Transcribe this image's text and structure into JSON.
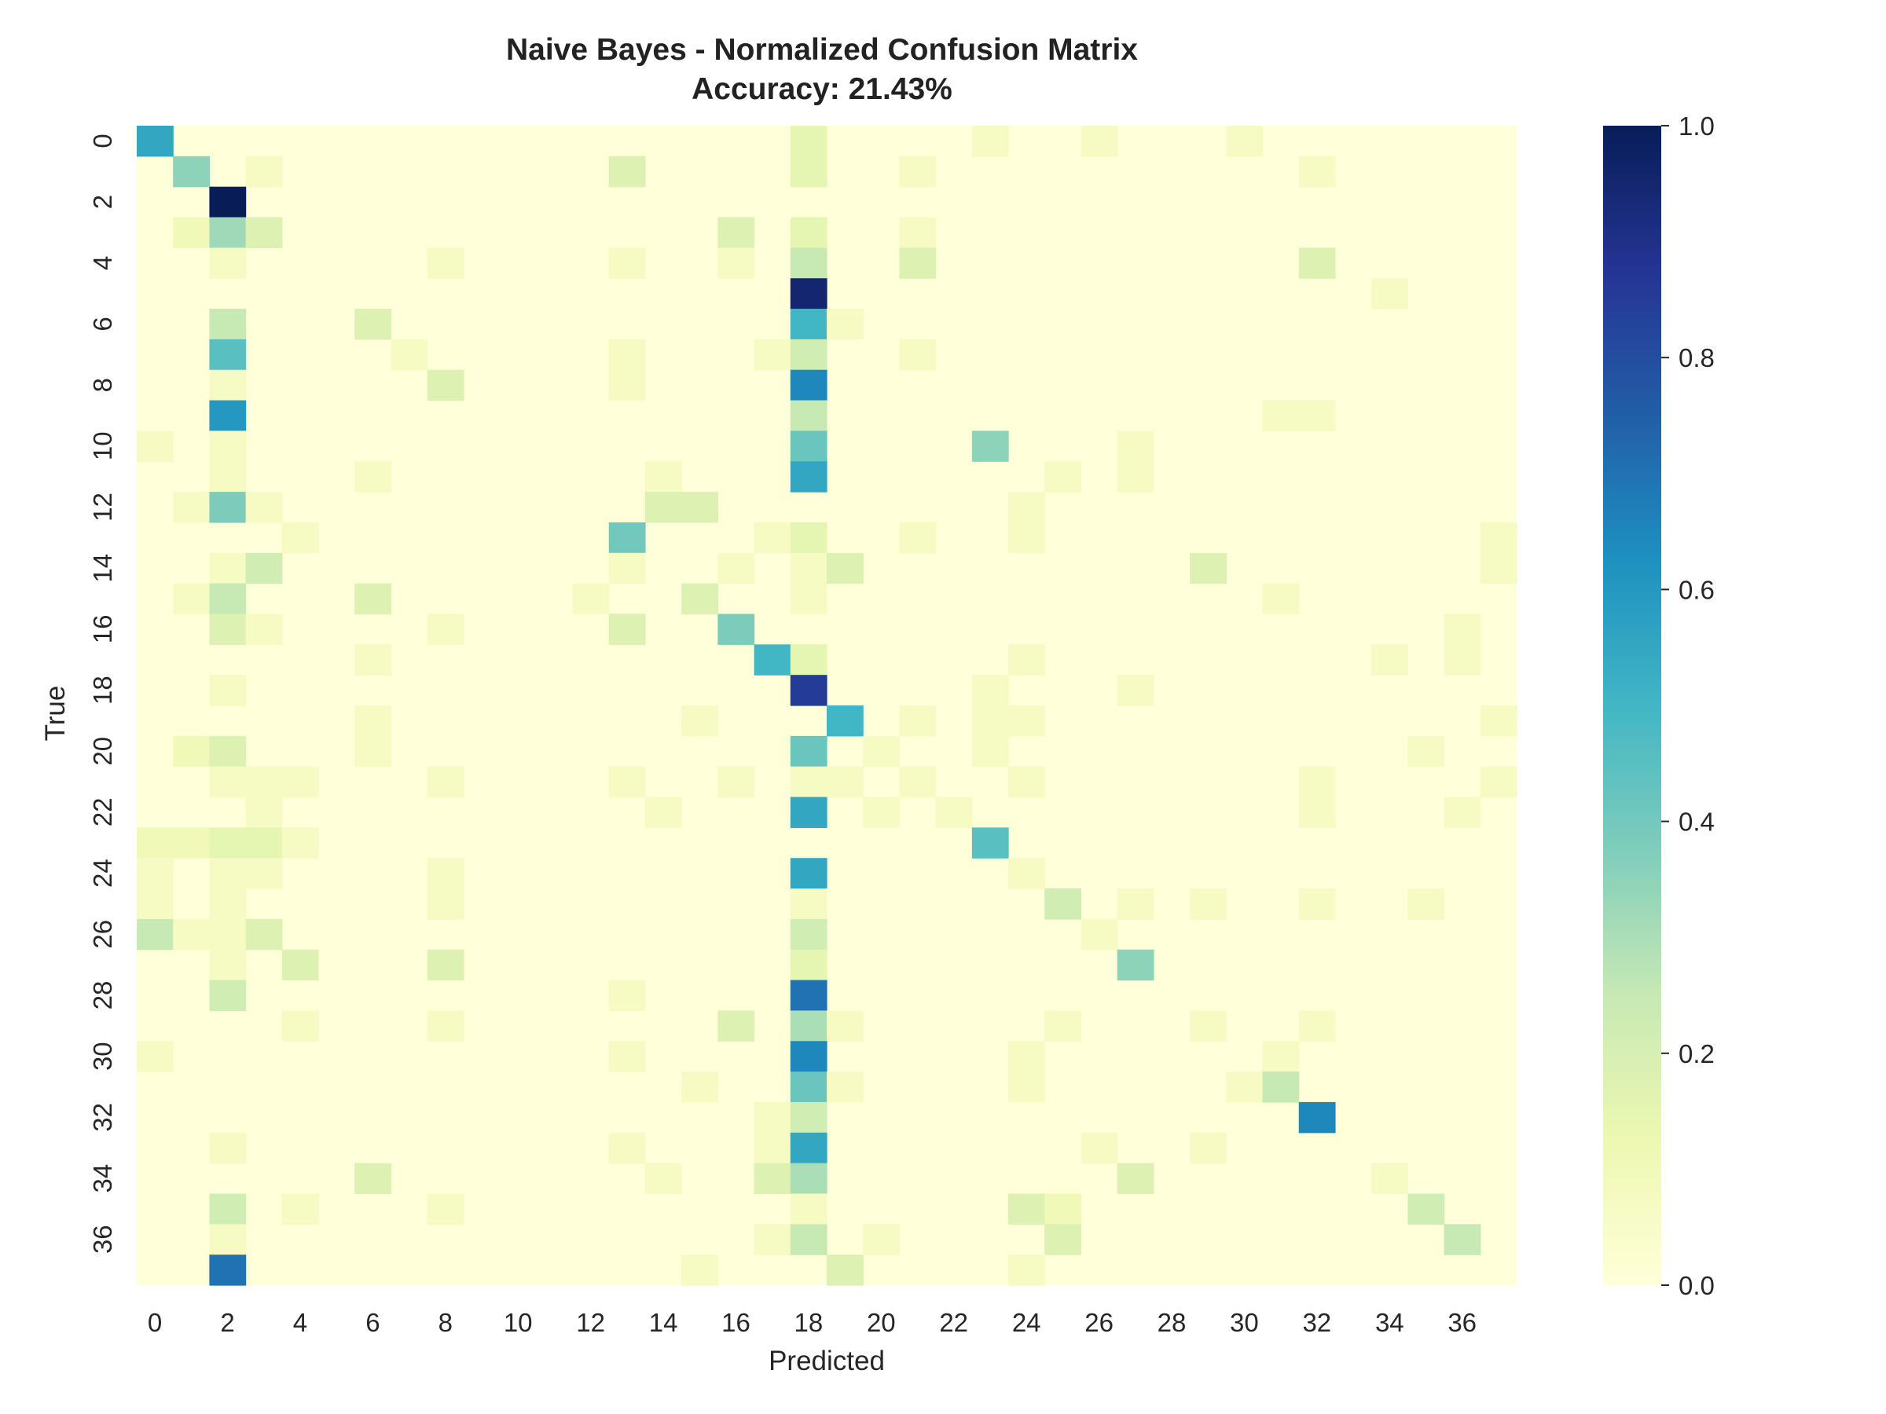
{
  "chart_data": {
    "type": "heatmap",
    "title": "Naive Bayes - Normalized Confusion Matrix",
    "subtitle": "Accuracy: 21.43%",
    "xlabel": "Predicted",
    "ylabel": "True",
    "x_tick_labels": [
      "0",
      "2",
      "4",
      "6",
      "8",
      "10",
      "12",
      "14",
      "16",
      "18",
      "20",
      "22",
      "24",
      "26",
      "28",
      "30",
      "32",
      "34",
      "36"
    ],
    "y_tick_labels": [
      "0",
      "2",
      "4",
      "6",
      "8",
      "10",
      "12",
      "14",
      "16",
      "18",
      "20",
      "22",
      "24",
      "26",
      "28",
      "30",
      "32",
      "34",
      "36"
    ],
    "n_classes": 38,
    "colormap": "YlGnBu",
    "colorbar": {
      "range": [
        0,
        1
      ],
      "tick_labels": [
        "0.0",
        "0.2",
        "0.4",
        "0.6",
        "0.8",
        "1.0"
      ]
    },
    "background_value": 0,
    "nonzero_cells": [
      [
        0,
        0,
        0.55
      ],
      [
        0,
        18,
        0.15
      ],
      [
        0,
        23,
        0.07
      ],
      [
        0,
        26,
        0.07
      ],
      [
        0,
        30,
        0.07
      ],
      [
        1,
        1,
        0.35
      ],
      [
        1,
        3,
        0.07
      ],
      [
        1,
        13,
        0.18
      ],
      [
        1,
        18,
        0.15
      ],
      [
        1,
        21,
        0.07
      ],
      [
        1,
        32,
        0.07
      ],
      [
        2,
        2,
        1.0
      ],
      [
        3,
        1,
        0.1
      ],
      [
        3,
        2,
        0.32
      ],
      [
        3,
        3,
        0.18
      ],
      [
        3,
        16,
        0.18
      ],
      [
        3,
        18,
        0.15
      ],
      [
        3,
        21,
        0.07
      ],
      [
        4,
        2,
        0.07
      ],
      [
        4,
        8,
        0.07
      ],
      [
        4,
        13,
        0.07
      ],
      [
        4,
        16,
        0.07
      ],
      [
        4,
        18,
        0.25
      ],
      [
        4,
        21,
        0.18
      ],
      [
        4,
        32,
        0.18
      ],
      [
        5,
        18,
        0.95
      ],
      [
        5,
        34,
        0.07
      ],
      [
        6,
        2,
        0.25
      ],
      [
        6,
        6,
        0.18
      ],
      [
        6,
        18,
        0.5
      ],
      [
        6,
        19,
        0.07
      ],
      [
        7,
        2,
        0.45
      ],
      [
        7,
        7,
        0.07
      ],
      [
        7,
        13,
        0.07
      ],
      [
        7,
        17,
        0.07
      ],
      [
        7,
        18,
        0.22
      ],
      [
        7,
        21,
        0.07
      ],
      [
        8,
        2,
        0.07
      ],
      [
        8,
        8,
        0.18
      ],
      [
        8,
        13,
        0.07
      ],
      [
        8,
        18,
        0.65
      ],
      [
        9,
        2,
        0.6
      ],
      [
        9,
        18,
        0.25
      ],
      [
        9,
        31,
        0.07
      ],
      [
        9,
        32,
        0.07
      ],
      [
        10,
        0,
        0.07
      ],
      [
        10,
        2,
        0.07
      ],
      [
        10,
        18,
        0.42
      ],
      [
        10,
        23,
        0.35
      ],
      [
        10,
        27,
        0.07
      ],
      [
        11,
        2,
        0.07
      ],
      [
        11,
        6,
        0.07
      ],
      [
        11,
        14,
        0.07
      ],
      [
        11,
        18,
        0.55
      ],
      [
        11,
        25,
        0.07
      ],
      [
        11,
        27,
        0.07
      ],
      [
        12,
        1,
        0.07
      ],
      [
        12,
        2,
        0.38
      ],
      [
        12,
        3,
        0.07
      ],
      [
        12,
        14,
        0.18
      ],
      [
        12,
        15,
        0.18
      ],
      [
        12,
        24,
        0.07
      ],
      [
        13,
        4,
        0.07
      ],
      [
        13,
        13,
        0.4
      ],
      [
        13,
        17,
        0.07
      ],
      [
        13,
        18,
        0.15
      ],
      [
        13,
        21,
        0.07
      ],
      [
        13,
        24,
        0.07
      ],
      [
        13,
        37,
        0.07
      ],
      [
        14,
        2,
        0.07
      ],
      [
        14,
        3,
        0.22
      ],
      [
        14,
        13,
        0.07
      ],
      [
        14,
        16,
        0.07
      ],
      [
        14,
        18,
        0.07
      ],
      [
        14,
        19,
        0.18
      ],
      [
        14,
        29,
        0.18
      ],
      [
        14,
        37,
        0.07
      ],
      [
        15,
        1,
        0.07
      ],
      [
        15,
        2,
        0.25
      ],
      [
        15,
        6,
        0.18
      ],
      [
        15,
        12,
        0.07
      ],
      [
        15,
        15,
        0.18
      ],
      [
        15,
        18,
        0.07
      ],
      [
        15,
        31,
        0.07
      ],
      [
        16,
        2,
        0.18
      ],
      [
        16,
        3,
        0.07
      ],
      [
        16,
        8,
        0.07
      ],
      [
        16,
        13,
        0.18
      ],
      [
        16,
        16,
        0.38
      ],
      [
        16,
        36,
        0.07
      ],
      [
        17,
        6,
        0.07
      ],
      [
        17,
        17,
        0.5
      ],
      [
        17,
        18,
        0.15
      ],
      [
        17,
        24,
        0.07
      ],
      [
        17,
        34,
        0.07
      ],
      [
        17,
        36,
        0.07
      ],
      [
        18,
        2,
        0.07
      ],
      [
        18,
        18,
        0.85
      ],
      [
        18,
        23,
        0.07
      ],
      [
        18,
        27,
        0.07
      ],
      [
        19,
        6,
        0.07
      ],
      [
        19,
        15,
        0.07
      ],
      [
        19,
        19,
        0.5
      ],
      [
        19,
        21,
        0.07
      ],
      [
        19,
        23,
        0.07
      ],
      [
        19,
        24,
        0.07
      ],
      [
        19,
        37,
        0.07
      ],
      [
        20,
        1,
        0.1
      ],
      [
        20,
        2,
        0.18
      ],
      [
        20,
        6,
        0.07
      ],
      [
        20,
        18,
        0.42
      ],
      [
        20,
        20,
        0.07
      ],
      [
        20,
        23,
        0.07
      ],
      [
        20,
        35,
        0.07
      ],
      [
        21,
        2,
        0.07
      ],
      [
        21,
        3,
        0.07
      ],
      [
        21,
        4,
        0.07
      ],
      [
        21,
        8,
        0.07
      ],
      [
        21,
        13,
        0.07
      ],
      [
        21,
        16,
        0.07
      ],
      [
        21,
        18,
        0.07
      ],
      [
        21,
        19,
        0.07
      ],
      [
        21,
        21,
        0.07
      ],
      [
        21,
        24,
        0.07
      ],
      [
        21,
        32,
        0.07
      ],
      [
        21,
        37,
        0.07
      ],
      [
        22,
        3,
        0.07
      ],
      [
        22,
        14,
        0.07
      ],
      [
        22,
        18,
        0.55
      ],
      [
        22,
        20,
        0.07
      ],
      [
        22,
        22,
        0.07
      ],
      [
        22,
        32,
        0.07
      ],
      [
        22,
        36,
        0.07
      ],
      [
        23,
        0,
        0.1
      ],
      [
        23,
        1,
        0.1
      ],
      [
        23,
        2,
        0.15
      ],
      [
        23,
        3,
        0.15
      ],
      [
        23,
        4,
        0.07
      ],
      [
        23,
        23,
        0.45
      ],
      [
        24,
        0,
        0.07
      ],
      [
        24,
        2,
        0.07
      ],
      [
        24,
        3,
        0.07
      ],
      [
        24,
        8,
        0.07
      ],
      [
        24,
        18,
        0.55
      ],
      [
        24,
        24,
        0.07
      ],
      [
        25,
        0,
        0.07
      ],
      [
        25,
        2,
        0.07
      ],
      [
        25,
        8,
        0.07
      ],
      [
        25,
        18,
        0.07
      ],
      [
        25,
        25,
        0.22
      ],
      [
        25,
        27,
        0.07
      ],
      [
        25,
        29,
        0.07
      ],
      [
        25,
        32,
        0.07
      ],
      [
        25,
        35,
        0.07
      ],
      [
        26,
        0,
        0.25
      ],
      [
        26,
        1,
        0.07
      ],
      [
        26,
        2,
        0.07
      ],
      [
        26,
        3,
        0.18
      ],
      [
        26,
        18,
        0.22
      ],
      [
        26,
        26,
        0.07
      ],
      [
        27,
        2,
        0.07
      ],
      [
        27,
        4,
        0.18
      ],
      [
        27,
        8,
        0.18
      ],
      [
        27,
        18,
        0.15
      ],
      [
        27,
        27,
        0.35
      ],
      [
        28,
        2,
        0.22
      ],
      [
        28,
        13,
        0.07
      ],
      [
        28,
        18,
        0.7
      ],
      [
        29,
        4,
        0.07
      ],
      [
        29,
        8,
        0.07
      ],
      [
        29,
        16,
        0.18
      ],
      [
        29,
        18,
        0.3
      ],
      [
        29,
        19,
        0.07
      ],
      [
        29,
        25,
        0.07
      ],
      [
        29,
        29,
        0.07
      ],
      [
        29,
        32,
        0.07
      ],
      [
        30,
        0,
        0.07
      ],
      [
        30,
        13,
        0.07
      ],
      [
        30,
        18,
        0.65
      ],
      [
        30,
        24,
        0.07
      ],
      [
        30,
        31,
        0.07
      ],
      [
        31,
        15,
        0.07
      ],
      [
        31,
        18,
        0.42
      ],
      [
        31,
        19,
        0.07
      ],
      [
        31,
        24,
        0.07
      ],
      [
        31,
        30,
        0.07
      ],
      [
        31,
        31,
        0.25
      ],
      [
        32,
        17,
        0.07
      ],
      [
        32,
        18,
        0.22
      ],
      [
        32,
        32,
        0.65
      ],
      [
        33,
        2,
        0.07
      ],
      [
        33,
        13,
        0.07
      ],
      [
        33,
        17,
        0.07
      ],
      [
        33,
        18,
        0.55
      ],
      [
        33,
        26,
        0.07
      ],
      [
        33,
        29,
        0.07
      ],
      [
        34,
        6,
        0.18
      ],
      [
        34,
        14,
        0.07
      ],
      [
        34,
        17,
        0.18
      ],
      [
        34,
        18,
        0.3
      ],
      [
        34,
        27,
        0.18
      ],
      [
        34,
        34,
        0.07
      ],
      [
        35,
        2,
        0.22
      ],
      [
        35,
        4,
        0.07
      ],
      [
        35,
        8,
        0.07
      ],
      [
        35,
        18,
        0.07
      ],
      [
        35,
        24,
        0.18
      ],
      [
        35,
        25,
        0.1
      ],
      [
        35,
        35,
        0.22
      ],
      [
        36,
        2,
        0.07
      ],
      [
        36,
        17,
        0.07
      ],
      [
        36,
        18,
        0.25
      ],
      [
        36,
        20,
        0.07
      ],
      [
        36,
        25,
        0.18
      ],
      [
        36,
        36,
        0.25
      ],
      [
        37,
        2,
        0.7
      ],
      [
        37,
        15,
        0.07
      ],
      [
        37,
        19,
        0.18
      ],
      [
        37,
        24,
        0.07
      ]
    ]
  }
}
